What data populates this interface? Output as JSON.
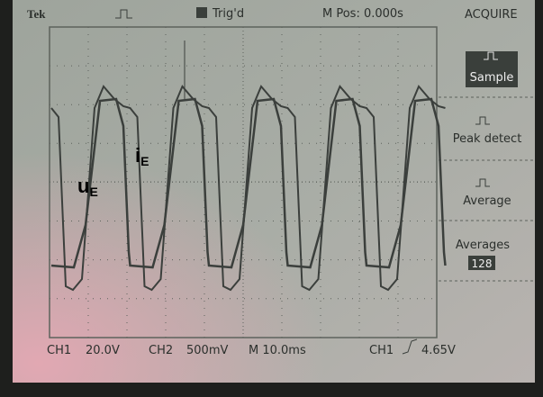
{
  "header": {
    "brand": "Tek",
    "trigger_status": "Trig'd",
    "position": "M Pos: 0.000s",
    "menu_title": "ACQUIRE"
  },
  "menu": {
    "items": [
      "Sample",
      "Peak detect",
      "Average"
    ],
    "averages_label": "Averages",
    "averages_value": "128"
  },
  "footer": {
    "ch1": "CH1",
    "ch1_scale": "20.0V",
    "ch2": "CH2",
    "ch2_scale": "500mV",
    "timebase": "M 10.0ms",
    "trigger_channel": "CH1",
    "trigger_level": "4.65V"
  },
  "annotations": {
    "voltage_symbol": "u",
    "voltage_subscript": "E",
    "current_symbol": "i",
    "current_subscript": "E"
  }
}
